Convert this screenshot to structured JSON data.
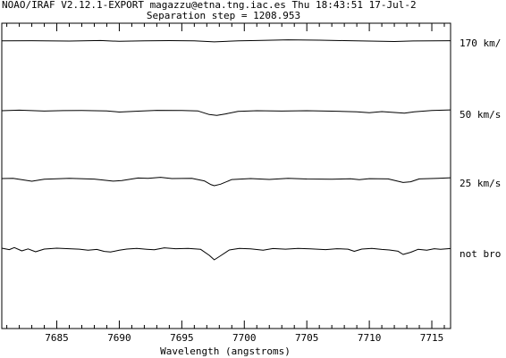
{
  "header": {
    "line1": "NOAO/IRAF V2.12.1-EXPORT magazzu@etna.tng.iac.es Thu 18:43:51 17-Jul-2",
    "line2": "Separation step = 1208.953"
  },
  "chart_data": {
    "type": "line",
    "title": "NOAO/IRAF V2.12.1-EXPORT magazzu@etna.tng.iac.es Thu 18:43:51 17-Jul-2",
    "subtitle": "Separation step = 1208.953",
    "xlabel": "Wavelength (angstroms)",
    "ylabel": "",
    "xlim": [
      7680.6,
      7716.5
    ],
    "x_ticks": [
      7685,
      7690,
      7695,
      7700,
      7705,
      7710,
      7715
    ],
    "grid": false,
    "series": [
      {
        "name": "170 km/",
        "baseline": 0.0,
        "points": [
          [
            7680.6,
            0.2
          ],
          [
            7683,
            0.4
          ],
          [
            7686,
            0.0
          ],
          [
            7688.5,
            0.6
          ],
          [
            7690,
            -0.3
          ],
          [
            7692,
            0.2
          ],
          [
            7694,
            0.5
          ],
          [
            7696,
            0.3
          ],
          [
            7697.6,
            -0.9
          ],
          [
            7699.5,
            0.2
          ],
          [
            7701,
            0.6
          ],
          [
            7703.5,
            1.4
          ],
          [
            7706,
            1.0
          ],
          [
            7708,
            0.5
          ],
          [
            7710,
            0.0
          ],
          [
            7712,
            -0.5
          ],
          [
            7713.5,
            0.1
          ],
          [
            7715,
            0.3
          ],
          [
            7716.5,
            0.4
          ]
        ]
      },
      {
        "name": "50 km/s",
        "baseline": 0.0,
        "points": [
          [
            7680.6,
            0.0
          ],
          [
            7682,
            0.6
          ],
          [
            7684,
            -0.4
          ],
          [
            7685.5,
            0.1
          ],
          [
            7687,
            0.2
          ],
          [
            7689,
            -0.2
          ],
          [
            7690,
            -1.5
          ],
          [
            7691.5,
            -0.5
          ],
          [
            7693,
            0.4
          ],
          [
            7695,
            0.3
          ],
          [
            7696.3,
            -0.3
          ],
          [
            7697.2,
            -4.3
          ],
          [
            7697.8,
            -5.2
          ],
          [
            7698.5,
            -3.6
          ],
          [
            7699.5,
            -0.8
          ],
          [
            7701,
            0.0
          ],
          [
            7703,
            -0.4
          ],
          [
            7705,
            0.0
          ],
          [
            7707,
            -0.5
          ],
          [
            7709,
            -1.2
          ],
          [
            7710,
            -2.2
          ],
          [
            7711,
            -1.0
          ],
          [
            7712.8,
            -2.7
          ],
          [
            7713.6,
            -1.3
          ],
          [
            7715,
            0.2
          ],
          [
            7716.5,
            0.9
          ]
        ]
      },
      {
        "name": "25 km/s",
        "baseline": 0.0,
        "points": [
          [
            7680.6,
            0.0
          ],
          [
            7681.5,
            0.3
          ],
          [
            7683,
            -3.0
          ],
          [
            7684,
            -0.8
          ],
          [
            7686,
            0.2
          ],
          [
            7688,
            -0.6
          ],
          [
            7689.5,
            -2.9
          ],
          [
            7690.2,
            -2.3
          ],
          [
            7691.5,
            0.6
          ],
          [
            7692.3,
            0.2
          ],
          [
            7693.3,
            1.4
          ],
          [
            7694.2,
            0.0
          ],
          [
            7695.8,
            0.3
          ],
          [
            7696.8,
            -2.6
          ],
          [
            7697.3,
            -6.6
          ],
          [
            7697.6,
            -8.0
          ],
          [
            7698.1,
            -6.3
          ],
          [
            7699,
            -1.1
          ],
          [
            7700.5,
            0.0
          ],
          [
            7702,
            -1.0
          ],
          [
            7703.5,
            0.3
          ],
          [
            7705,
            -0.5
          ],
          [
            7707,
            -0.7
          ],
          [
            7708.5,
            -0.3
          ],
          [
            7709.2,
            -1.3
          ],
          [
            7710,
            -0.1
          ],
          [
            7711.5,
            -0.4
          ],
          [
            7712.7,
            -4.4
          ],
          [
            7713.3,
            -3.6
          ],
          [
            7714,
            -0.4
          ],
          [
            7715.5,
            0.3
          ],
          [
            7716.5,
            0.9
          ]
        ]
      },
      {
        "name": "not bro",
        "baseline": 0.0,
        "points": [
          [
            7680.6,
            0.0
          ],
          [
            7681.2,
            -1.6
          ],
          [
            7681.6,
            0.7
          ],
          [
            7682.2,
            -3.0
          ],
          [
            7682.7,
            -0.8
          ],
          [
            7683.3,
            -4.0
          ],
          [
            7684,
            -1.0
          ],
          [
            7685,
            0.0
          ],
          [
            7686,
            -0.6
          ],
          [
            7686.8,
            -1.1
          ],
          [
            7687.5,
            -2.2
          ],
          [
            7688.2,
            -1.4
          ],
          [
            7688.8,
            -3.6
          ],
          [
            7689.3,
            -4.3
          ],
          [
            7690,
            -2.3
          ],
          [
            7690.6,
            -1.0
          ],
          [
            7691.4,
            -0.2
          ],
          [
            7692.2,
            -1.2
          ],
          [
            7692.8,
            -1.8
          ],
          [
            7693.6,
            0.4
          ],
          [
            7694.5,
            -0.6
          ],
          [
            7695.5,
            -0.3
          ],
          [
            7696.5,
            -1.2
          ],
          [
            7697.2,
            -8.0
          ],
          [
            7697.6,
            -13.0
          ],
          [
            7698.1,
            -8.5
          ],
          [
            7698.8,
            -2.0
          ],
          [
            7699.6,
            -0.3
          ],
          [
            7700.5,
            -0.8
          ],
          [
            7701.5,
            -2.3
          ],
          [
            7702.3,
            -0.4
          ],
          [
            7703.3,
            -1.1
          ],
          [
            7704.3,
            -0.2
          ],
          [
            7705.3,
            -0.8
          ],
          [
            7706.5,
            -1.6
          ],
          [
            7707.4,
            -0.6
          ],
          [
            7708.3,
            -1.1
          ],
          [
            7708.8,
            -3.5
          ],
          [
            7709.4,
            -1.0
          ],
          [
            7710.2,
            -0.2
          ],
          [
            7711,
            -1.4
          ],
          [
            7711.6,
            -2.0
          ],
          [
            7712.3,
            -3.4
          ],
          [
            7712.7,
            -7.0
          ],
          [
            7713.3,
            -4.6
          ],
          [
            7713.9,
            -1.3
          ],
          [
            7714.6,
            -2.2
          ],
          [
            7715.2,
            -0.6
          ],
          [
            7715.7,
            -1.2
          ],
          [
            7716.5,
            -0.4
          ]
        ]
      }
    ]
  }
}
